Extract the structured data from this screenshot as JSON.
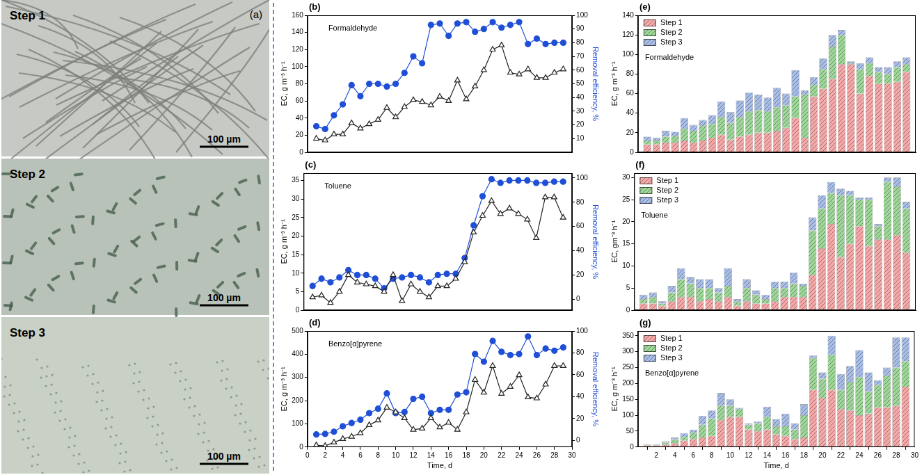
{
  "micrographs": {
    "panel_label": "(a)",
    "images": [
      {
        "label": "Step 1",
        "scale_bar": "100 µm"
      },
      {
        "label": "Step 2",
        "scale_bar": "100 µm"
      },
      {
        "label": "Step 3",
        "scale_bar": "100 µm"
      }
    ]
  },
  "chart_data": [
    {
      "type": "line",
      "panel_label": "(b)",
      "title": "Formaldehyde",
      "y_label": "EC, g m⁻³ h⁻¹",
      "y2_label": "Removal efficiency, %",
      "x": [
        1,
        2,
        3,
        4,
        5,
        6,
        7,
        8,
        9,
        10,
        11,
        12,
        13,
        14,
        15,
        16,
        17,
        18,
        19,
        20,
        21,
        22,
        23,
        24,
        25,
        26,
        27,
        28,
        29
      ],
      "xlim": [
        0,
        30
      ],
      "ylim": [
        0,
        160
      ],
      "yticks": [
        0,
        20,
        40,
        60,
        80,
        100,
        120,
        140,
        160
      ],
      "y2lim": [
        0,
        100
      ],
      "y2ticks": [
        10,
        20,
        30,
        40,
        50,
        60,
        70,
        80,
        90,
        100
      ],
      "tick_labels": "y",
      "grid": false,
      "series": [
        {
          "color": "#222222",
          "marker": "triangle",
          "values": [
            16,
            14,
            21,
            21,
            34,
            28,
            33,
            38,
            52,
            41,
            53,
            61,
            59,
            55,
            65,
            60,
            84,
            62,
            77,
            96,
            120,
            125,
            93,
            91,
            97,
            87,
            87,
            93,
            97
          ]
        },
        {
          "color": "#1f4fd6",
          "marker": "circle",
          "axis": "y2",
          "values": [
            19,
            17,
            27,
            35,
            49,
            41,
            50,
            50,
            48,
            50,
            58,
            70,
            65,
            93,
            94,
            85,
            94,
            95,
            88,
            90,
            95,
            91,
            93,
            95,
            79,
            83,
            79,
            80,
            80
          ]
        }
      ]
    },
    {
      "type": "line",
      "panel_label": "(c)",
      "title": "Toluene",
      "y_label": "EC, g m⁻³ h⁻¹",
      "y2_label": "Removal efficiency, %",
      "x": [
        1,
        2,
        3,
        4,
        5,
        6,
        7,
        8,
        9,
        10,
        11,
        12,
        13,
        14,
        15,
        16,
        17,
        18,
        19,
        20,
        21,
        22,
        23,
        24,
        25,
        26,
        27,
        28,
        29
      ],
      "xlim": [
        0,
        30
      ],
      "ylim": [
        0,
        37
      ],
      "yticks": [
        0,
        5,
        10,
        15,
        20,
        25,
        30,
        35
      ],
      "y2lim": [
        -9,
        104
      ],
      "y2ticks": [
        0,
        20,
        40,
        60,
        80,
        100
      ],
      "tick_labels": "y",
      "grid": false,
      "series": [
        {
          "color": "#222222",
          "marker": "triangle",
          "values": [
            3.5,
            4,
            2,
            5,
            9.5,
            7.5,
            7,
            6.5,
            5,
            9.5,
            2.5,
            7,
            5,
            3.5,
            6.5,
            6.5,
            8.5,
            13,
            21,
            25.5,
            29.5,
            26,
            27.5,
            26,
            24.5,
            19.5,
            30.5,
            30.5,
            25
          ]
        },
        {
          "color": "#1f4fd6",
          "marker": "circle",
          "axis": "y2",
          "values": [
            11,
            17,
            14,
            18,
            24,
            20,
            20,
            17,
            9,
            17,
            18,
            20,
            18,
            14,
            20,
            21,
            21,
            34,
            61,
            85,
            99,
            96,
            98,
            98,
            98,
            96,
            96,
            97,
            97
          ]
        }
      ]
    },
    {
      "type": "line",
      "panel_label": "(d)",
      "title": "Benzo[α]pyrene",
      "y_label": "EC, g m⁻³ h⁻¹",
      "y2_label": "Removal efficiency, %",
      "x_label": "Time, d",
      "x": [
        1,
        2,
        3,
        4,
        5,
        6,
        7,
        8,
        9,
        10,
        11,
        12,
        13,
        14,
        15,
        16,
        17,
        18,
        19,
        20,
        21,
        22,
        23,
        24,
        25,
        26,
        27,
        28,
        29
      ],
      "xlim": [
        0,
        30
      ],
      "xticks": [
        0,
        2,
        4,
        6,
        8,
        10,
        12,
        14,
        16,
        18,
        20,
        22,
        24,
        26,
        28,
        30
      ],
      "ylim": [
        0,
        500
      ],
      "yticks": [
        0,
        100,
        200,
        300,
        400,
        500
      ],
      "y2lim": [
        -6,
        100
      ],
      "y2ticks": [
        0,
        20,
        40,
        60,
        80,
        100
      ],
      "grid": false,
      "series": [
        {
          "color": "#222222",
          "marker": "triangle",
          "values": [
            8,
            5,
            20,
            35,
            45,
            60,
            95,
            115,
            170,
            150,
            125,
            75,
            80,
            125,
            85,
            105,
            75,
            150,
            290,
            235,
            350,
            230,
            260,
            310,
            215,
            210,
            270,
            350,
            350
          ]
        },
        {
          "color": "#1f4fd6",
          "marker": "circle",
          "axis": "y2",
          "values": [
            5.5,
            6,
            8,
            13,
            16,
            19,
            25,
            29,
            43,
            25,
            26,
            38,
            40,
            25,
            28,
            28,
            42,
            44,
            79,
            72,
            91,
            81,
            78,
            79,
            95,
            78,
            84,
            82,
            85
          ]
        }
      ]
    },
    {
      "type": "bar",
      "stacked": true,
      "panel_label": "(e)",
      "title": "Formaldehyde",
      "y_label": "EC, g m⁻³ h⁻¹",
      "x": [
        1,
        2,
        3,
        4,
        5,
        6,
        7,
        8,
        9,
        10,
        11,
        12,
        13,
        14,
        15,
        16,
        17,
        18,
        19,
        20,
        21,
        22,
        23,
        24,
        25,
        26,
        27,
        28,
        29
      ],
      "xlim": [
        0,
        30
      ],
      "ylim": [
        0,
        140
      ],
      "yticks": [
        0,
        20,
        40,
        60,
        80,
        100,
        120,
        140
      ],
      "legend": "upper left",
      "tick_labels": "y",
      "grid": false,
      "series": [
        {
          "name": "Step 1",
          "color": "#f6a9a9",
          "values": [
            8,
            8,
            10,
            10,
            12,
            10,
            12,
            15,
            18,
            13,
            16,
            18,
            20,
            20,
            22,
            25,
            35,
            15,
            57,
            65,
            75,
            90,
            90,
            60,
            78,
            70,
            70,
            72,
            82
          ]
        },
        {
          "name": "Step 2",
          "color": "#9fd89a",
          "values": [
            4,
            4,
            6,
            7,
            12,
            12,
            15,
            14,
            18,
            17,
            20,
            24,
            23,
            22,
            24,
            23,
            22,
            44,
            12,
            20,
            33,
            30,
            1,
            25,
            13,
            12,
            10,
            15,
            8
          ]
        },
        {
          "name": "Step 3",
          "color": "#a9bfe8",
          "values": [
            4,
            3,
            6,
            4,
            11,
            6,
            6,
            9,
            16,
            11,
            17,
            19,
            16,
            14,
            20,
            12,
            27,
            4,
            8,
            11,
            12,
            5,
            2,
            6,
            6,
            5,
            7,
            6,
            7
          ]
        }
      ]
    },
    {
      "type": "bar",
      "stacked": true,
      "panel_label": "(f)",
      "title": "Toluene",
      "y_label": "EC, gm⁻³ h⁻¹",
      "x": [
        1,
        2,
        3,
        4,
        5,
        6,
        7,
        8,
        9,
        10,
        11,
        12,
        13,
        14,
        15,
        16,
        17,
        18,
        19,
        20,
        21,
        22,
        23,
        24,
        25,
        26,
        27,
        28,
        29
      ],
      "xlim": [
        0,
        30
      ],
      "ylim": [
        0,
        31
      ],
      "yticks": [
        0,
        5,
        10,
        15,
        20,
        25,
        30
      ],
      "legend": "upper left",
      "tick_labels": "y",
      "grid": false,
      "series": [
        {
          "name": "Step 1",
          "color": "#f6a9a9",
          "values": [
            1.5,
            1.5,
            1,
            2,
            3,
            3,
            2,
            2.5,
            2,
            3,
            1,
            2,
            1.5,
            1.5,
            2,
            3,
            3,
            3,
            8,
            14,
            19.5,
            12,
            15,
            19,
            14.5,
            16,
            16,
            17,
            13
          ]
        },
        {
          "name": "Step 2",
          "color": "#9fd89a",
          "values": [
            1,
            1.5,
            0.5,
            2,
            4,
            3,
            3,
            2.5,
            2,
            2.5,
            1,
            3,
            2,
            1,
            3,
            2,
            3,
            2.5,
            10,
            9,
            7,
            14,
            11,
            6,
            10.5,
            3,
            13,
            11,
            10
          ]
        },
        {
          "name": "Step 3",
          "color": "#a9bfe8",
          "values": [
            1,
            1,
            0.5,
            1.5,
            2.5,
            1.5,
            2,
            2,
            1,
            4,
            0.5,
            2,
            1,
            1,
            1.5,
            1.5,
            2.5,
            0.5,
            3,
            3,
            2.5,
            1.5,
            1,
            0.5,
            0.5,
            0.5,
            1,
            2,
            1.5
          ]
        }
      ]
    },
    {
      "type": "bar",
      "stacked": true,
      "panel_label": "(g)",
      "title": "Benzo[α]pyrene",
      "y_label": "EC, g m⁻³ h⁻¹",
      "x_label": "Time, d",
      "x": [
        1,
        2,
        3,
        4,
        5,
        6,
        7,
        8,
        9,
        10,
        11,
        12,
        13,
        14,
        15,
        16,
        17,
        18,
        19,
        20,
        21,
        22,
        23,
        24,
        25,
        26,
        27,
        28,
        29
      ],
      "xlim": [
        0,
        30
      ],
      "xticks": [
        2,
        4,
        6,
        8,
        10,
        12,
        14,
        16,
        18,
        20,
        22,
        24,
        26,
        28,
        30
      ],
      "ylim": [
        0,
        365
      ],
      "yticks": [
        0,
        50,
        100,
        150,
        200,
        250,
        300,
        350
      ],
      "legend": "upper left",
      "grid": false,
      "series": [
        {
          "name": "Step 1",
          "color": "#f6a9a9",
          "values": [
            5,
            5,
            8,
            12,
            20,
            25,
            30,
            35,
            85,
            95,
            95,
            55,
            50,
            55,
            40,
            35,
            25,
            30,
            180,
            155,
            180,
            120,
            115,
            100,
            105,
            125,
            125,
            130,
            190
          ]
        },
        {
          "name": "Step 2",
          "color": "#9fd89a",
          "values": [
            2,
            2,
            6,
            12,
            12,
            20,
            40,
            55,
            45,
            35,
            25,
            15,
            25,
            40,
            25,
            30,
            30,
            70,
            100,
            60,
            110,
            60,
            90,
            120,
            70,
            70,
            100,
            120,
            80
          ]
        },
        {
          "name": "Step 3",
          "color": "#a9bfe8",
          "values": [
            2,
            2,
            4,
            6,
            12,
            10,
            28,
            25,
            40,
            20,
            3,
            5,
            5,
            32,
            23,
            40,
            20,
            35,
            8,
            20,
            60,
            50,
            50,
            85,
            60,
            15,
            25,
            95,
            75
          ]
        }
      ]
    }
  ]
}
